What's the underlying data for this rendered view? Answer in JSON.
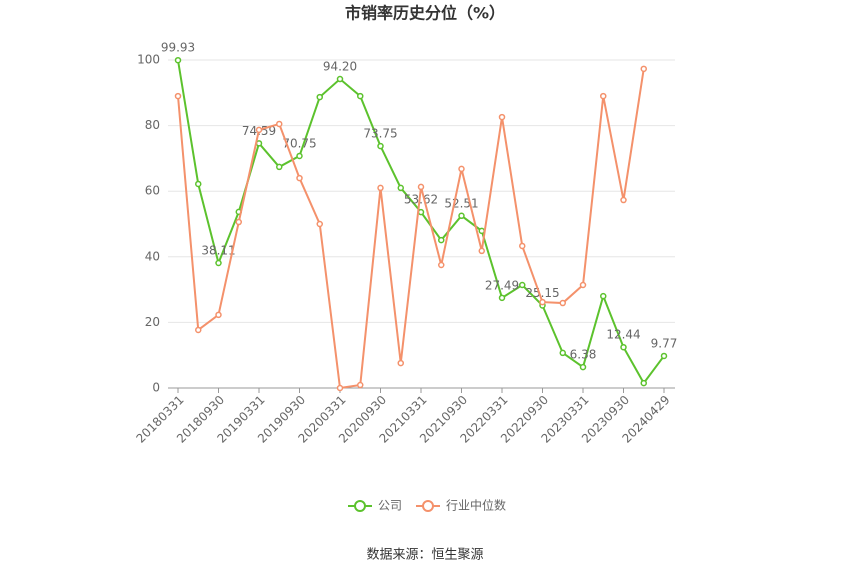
{
  "chart_data": {
    "type": "line",
    "title": "市销率历史分位（%）",
    "categories": [
      "20180331",
      null,
      "20180930",
      null,
      "20190331",
      null,
      "20190930",
      null,
      "20200331",
      null,
      "20200930",
      null,
      "20210331",
      null,
      "20210930",
      null,
      "20220331",
      null,
      "20220930",
      null,
      "20230331",
      null,
      "20230930",
      null,
      "20240429"
    ],
    "series": [
      {
        "name": "公司",
        "color": "#5cc22d",
        "values": [
          99.93,
          62.2,
          38.11,
          53.7,
          74.59,
          67.4,
          70.75,
          88.7,
          94.2,
          89.0,
          73.75,
          61.0,
          53.62,
          45.1,
          52.51,
          47.9,
          27.49,
          31.4,
          25.15,
          10.7,
          6.38,
          28.0,
          12.44,
          1.5,
          9.77
        ],
        "value_labels": [
          "99.93",
          null,
          "38.11",
          null,
          "74.59",
          null,
          "70.75",
          null,
          "94.20",
          null,
          "73.75",
          null,
          "53.62",
          null,
          "52.51",
          null,
          "27.49",
          null,
          "25.15",
          null,
          "6.38",
          null,
          "12.44",
          null,
          "9.77"
        ]
      },
      {
        "name": "行业中位数",
        "color": "#f4916b",
        "values": [
          89.0,
          17.7,
          22.3,
          50.6,
          78.7,
          80.5,
          64.0,
          50.0,
          0.0,
          0.9,
          61.0,
          7.6,
          61.3,
          37.5,
          66.8,
          41.8,
          82.6,
          43.3,
          26.2,
          25.9,
          31.4,
          89.0,
          57.3,
          97.3,
          null
        ]
      }
    ],
    "ylim": [
      0,
      100
    ],
    "yticks": [
      0,
      20,
      40,
      60,
      80,
      100
    ],
    "grid": true,
    "source": "数据来源：恒生聚源"
  }
}
